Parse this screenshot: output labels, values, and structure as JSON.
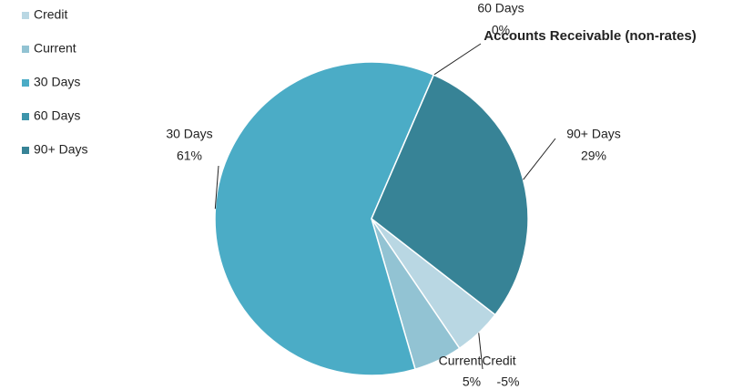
{
  "chart_data": {
    "type": "pie",
    "title": "Accounts Receivable (non-rates)",
    "categories": [
      "Credit",
      "Current",
      "30 Days",
      "60 Days",
      "90+ Days"
    ],
    "values": [
      -5,
      5,
      61,
      0,
      29
    ],
    "value_labels": [
      "-5%",
      "5%",
      "61%",
      "0%",
      "29%"
    ],
    "colors": [
      "#b9d7e3",
      "#92c3d3",
      "#4bacc6",
      "#3d95ab",
      "#378396"
    ]
  }
}
